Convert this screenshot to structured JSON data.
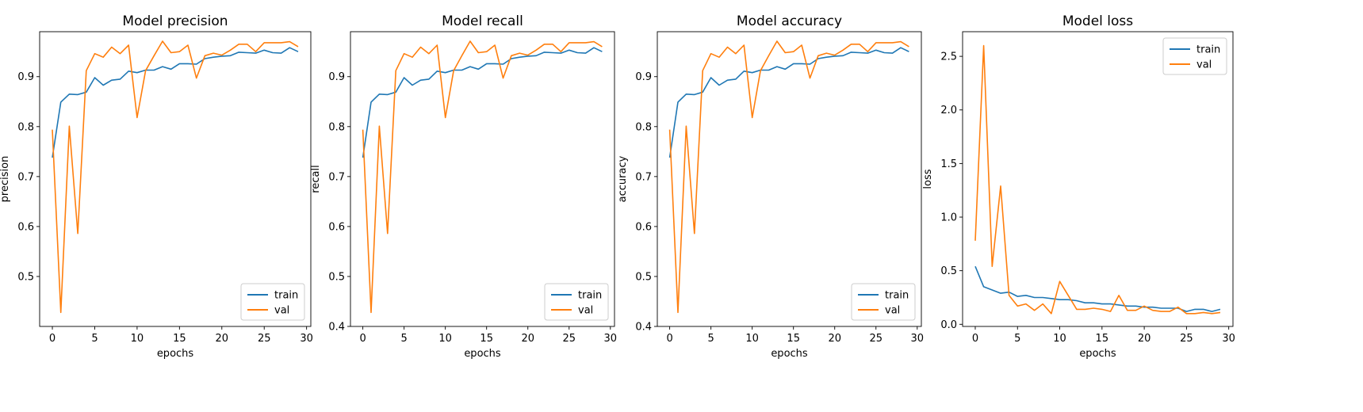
{
  "colors": {
    "train": "#1f77b4",
    "val": "#ff7f0e",
    "axes": "#000000",
    "legend_border": "#cccccc"
  },
  "chart_data": [
    {
      "type": "line",
      "title": "Model precision",
      "xlabel": "epochs",
      "ylabel": "precision",
      "xlim": [
        -1.5,
        30.5
      ],
      "ylim": [
        0.4,
        0.99
      ],
      "xticks": [
        0,
        5,
        10,
        15,
        20,
        25,
        30
      ],
      "yticks": [
        0.5,
        0.6,
        0.7,
        0.8,
        0.9
      ],
      "ytick_labels": [
        "0.5",
        "0.6",
        "0.7",
        "0.8",
        "0.9"
      ],
      "legend": "lower-right",
      "x": [
        0,
        1,
        2,
        3,
        4,
        5,
        6,
        7,
        8,
        9,
        10,
        11,
        12,
        13,
        14,
        15,
        16,
        17,
        18,
        19,
        20,
        21,
        22,
        23,
        24,
        25,
        26,
        27,
        28,
        29
      ],
      "series": [
        {
          "name": "train",
          "values": [
            0.738,
            0.849,
            0.865,
            0.864,
            0.869,
            0.898,
            0.883,
            0.893,
            0.895,
            0.911,
            0.908,
            0.913,
            0.913,
            0.92,
            0.915,
            0.926,
            0.926,
            0.925,
            0.936,
            0.939,
            0.941,
            0.942,
            0.949,
            0.948,
            0.947,
            0.953,
            0.948,
            0.947,
            0.958,
            0.95
          ]
        },
        {
          "name": "val",
          "values": [
            0.794,
            0.428,
            0.801,
            0.586,
            0.912,
            0.946,
            0.939,
            0.959,
            0.946,
            0.963,
            0.818,
            0.912,
            0.942,
            0.971,
            0.948,
            0.95,
            0.963,
            0.897,
            0.942,
            0.947,
            0.943,
            0.953,
            0.965,
            0.965,
            0.95,
            0.968,
            0.968,
            0.968,
            0.97,
            0.96
          ]
        }
      ]
    },
    {
      "type": "line",
      "title": "Model recall",
      "xlabel": "epochs",
      "ylabel": "recall",
      "xlim": [
        -1.5,
        30.5
      ],
      "ylim": [
        0.4,
        0.99
      ],
      "xticks": [
        0,
        5,
        10,
        15,
        20,
        25,
        30
      ],
      "yticks": [
        0.4,
        0.5,
        0.6,
        0.7,
        0.8,
        0.9
      ],
      "ytick_labels": [
        "0.4",
        "0.5",
        "0.6",
        "0.7",
        "0.8",
        "0.9"
      ],
      "legend": "lower-right",
      "x": [
        0,
        1,
        2,
        3,
        4,
        5,
        6,
        7,
        8,
        9,
        10,
        11,
        12,
        13,
        14,
        15,
        16,
        17,
        18,
        19,
        20,
        21,
        22,
        23,
        24,
        25,
        26,
        27,
        28,
        29
      ],
      "series": [
        {
          "name": "train",
          "values": [
            0.738,
            0.849,
            0.865,
            0.864,
            0.869,
            0.898,
            0.883,
            0.893,
            0.895,
            0.911,
            0.908,
            0.913,
            0.913,
            0.92,
            0.915,
            0.926,
            0.926,
            0.925,
            0.936,
            0.939,
            0.941,
            0.942,
            0.949,
            0.948,
            0.947,
            0.953,
            0.948,
            0.947,
            0.958,
            0.95
          ]
        },
        {
          "name": "val",
          "values": [
            0.794,
            0.428,
            0.801,
            0.586,
            0.912,
            0.946,
            0.939,
            0.959,
            0.946,
            0.963,
            0.818,
            0.912,
            0.942,
            0.971,
            0.948,
            0.95,
            0.963,
            0.897,
            0.942,
            0.947,
            0.943,
            0.953,
            0.965,
            0.965,
            0.95,
            0.968,
            0.968,
            0.968,
            0.97,
            0.96
          ]
        }
      ]
    },
    {
      "type": "line",
      "title": "Model accuracy",
      "xlabel": "epochs",
      "ylabel": "accuracy",
      "xlim": [
        -1.5,
        30.5
      ],
      "ylim": [
        0.4,
        0.99
      ],
      "xticks": [
        0,
        5,
        10,
        15,
        20,
        25,
        30
      ],
      "yticks": [
        0.4,
        0.5,
        0.6,
        0.7,
        0.8,
        0.9
      ],
      "ytick_labels": [
        "0.4",
        "0.5",
        "0.6",
        "0.7",
        "0.8",
        "0.9"
      ],
      "legend": "lower-right",
      "x": [
        0,
        1,
        2,
        3,
        4,
        5,
        6,
        7,
        8,
        9,
        10,
        11,
        12,
        13,
        14,
        15,
        16,
        17,
        18,
        19,
        20,
        21,
        22,
        23,
        24,
        25,
        26,
        27,
        28,
        29
      ],
      "series": [
        {
          "name": "train",
          "values": [
            0.738,
            0.849,
            0.865,
            0.864,
            0.869,
            0.898,
            0.883,
            0.893,
            0.895,
            0.911,
            0.908,
            0.913,
            0.913,
            0.92,
            0.915,
            0.926,
            0.926,
            0.925,
            0.936,
            0.939,
            0.941,
            0.942,
            0.949,
            0.948,
            0.947,
            0.953,
            0.948,
            0.947,
            0.958,
            0.95
          ]
        },
        {
          "name": "val",
          "values": [
            0.794,
            0.428,
            0.801,
            0.586,
            0.912,
            0.946,
            0.939,
            0.959,
            0.946,
            0.963,
            0.818,
            0.912,
            0.942,
            0.971,
            0.948,
            0.95,
            0.963,
            0.897,
            0.942,
            0.947,
            0.943,
            0.953,
            0.965,
            0.965,
            0.95,
            0.968,
            0.968,
            0.968,
            0.97,
            0.96
          ]
        }
      ]
    },
    {
      "type": "line",
      "title": "Model loss",
      "xlabel": "epochs",
      "ylabel": "loss",
      "xlim": [
        -1.5,
        30.5
      ],
      "ylim": [
        -0.02,
        2.73
      ],
      "xticks": [
        0,
        5,
        10,
        15,
        20,
        25,
        30
      ],
      "yticks": [
        0.0,
        0.5,
        1.0,
        1.5,
        2.0,
        2.5
      ],
      "ytick_labels": [
        "0.0",
        "0.5",
        "1.0",
        "1.5",
        "2.0",
        "2.5"
      ],
      "legend": "upper-right",
      "x": [
        0,
        1,
        2,
        3,
        4,
        5,
        6,
        7,
        8,
        9,
        10,
        11,
        12,
        13,
        14,
        15,
        16,
        17,
        18,
        19,
        20,
        21,
        22,
        23,
        24,
        25,
        26,
        27,
        28,
        29
      ],
      "series": [
        {
          "name": "train",
          "values": [
            0.54,
            0.35,
            0.32,
            0.29,
            0.3,
            0.26,
            0.27,
            0.25,
            0.25,
            0.24,
            0.23,
            0.23,
            0.22,
            0.2,
            0.2,
            0.19,
            0.19,
            0.18,
            0.17,
            0.17,
            0.16,
            0.16,
            0.15,
            0.15,
            0.15,
            0.12,
            0.14,
            0.14,
            0.12,
            0.14
          ]
        },
        {
          "name": "val",
          "values": [
            0.78,
            2.6,
            0.54,
            1.29,
            0.27,
            0.17,
            0.19,
            0.13,
            0.19,
            0.1,
            0.4,
            0.27,
            0.14,
            0.14,
            0.15,
            0.14,
            0.12,
            0.27,
            0.13,
            0.13,
            0.17,
            0.13,
            0.12,
            0.12,
            0.16,
            0.1,
            0.1,
            0.11,
            0.1,
            0.11
          ]
        }
      ]
    }
  ]
}
